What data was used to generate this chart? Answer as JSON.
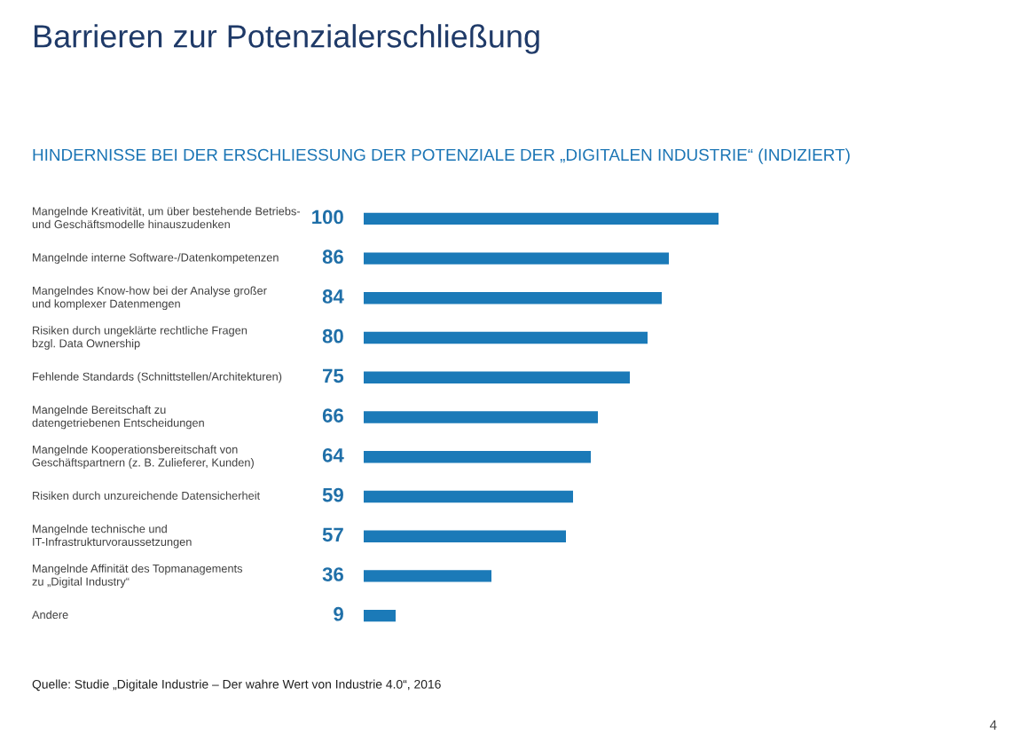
{
  "chart_data": {
    "type": "bar",
    "orientation": "horizontal",
    "title": "Barrieren zur Potenzialerschließung",
    "subtitle": "HINDERNISSE BEI DER ERSCHLIESSUNG DER POTENZIALE DER „DIGITALEN INDUSTRIE“ (INDIZIERT)",
    "categories": [
      "Mangelnde Kreativität, um über bestehende Betriebs-\nund Geschäftsmodelle hinauszudenken",
      "Mangelnde interne Software-/Datenkompetenzen",
      "Mangelndes Know-how bei der Analyse großer\nund komplexer Datenmengen",
      "Risiken durch ungeklärte rechtliche Fragen\nbzgl. Data Ownership",
      "Fehlende Standards (Schnittstellen/Architekturen)",
      "Mangelnde Bereitschaft zu\ndatengetriebenen Entscheidungen",
      "Mangelnde Kooperationsbereitschaft von\nGeschäftspartnern (z. B. Zulieferer, Kunden)",
      "Risiken durch unzureichende Datensicherheit",
      "Mangelnde technische und\nIT-Infrastrukturvoraussetzungen",
      "Mangelnde Affinität des Topmanagements\nzu „Digital Industry“",
      "Andere"
    ],
    "values": [
      100,
      86,
      84,
      80,
      75,
      66,
      64,
      59,
      57,
      36,
      9
    ],
    "color": "#1b7ab8",
    "data_labels": true,
    "annotations": [
      "Quelle: Studie „Digitale Industrie – Der wahre Wert von Industrie 4.0“, 2016",
      "4"
    ]
  }
}
